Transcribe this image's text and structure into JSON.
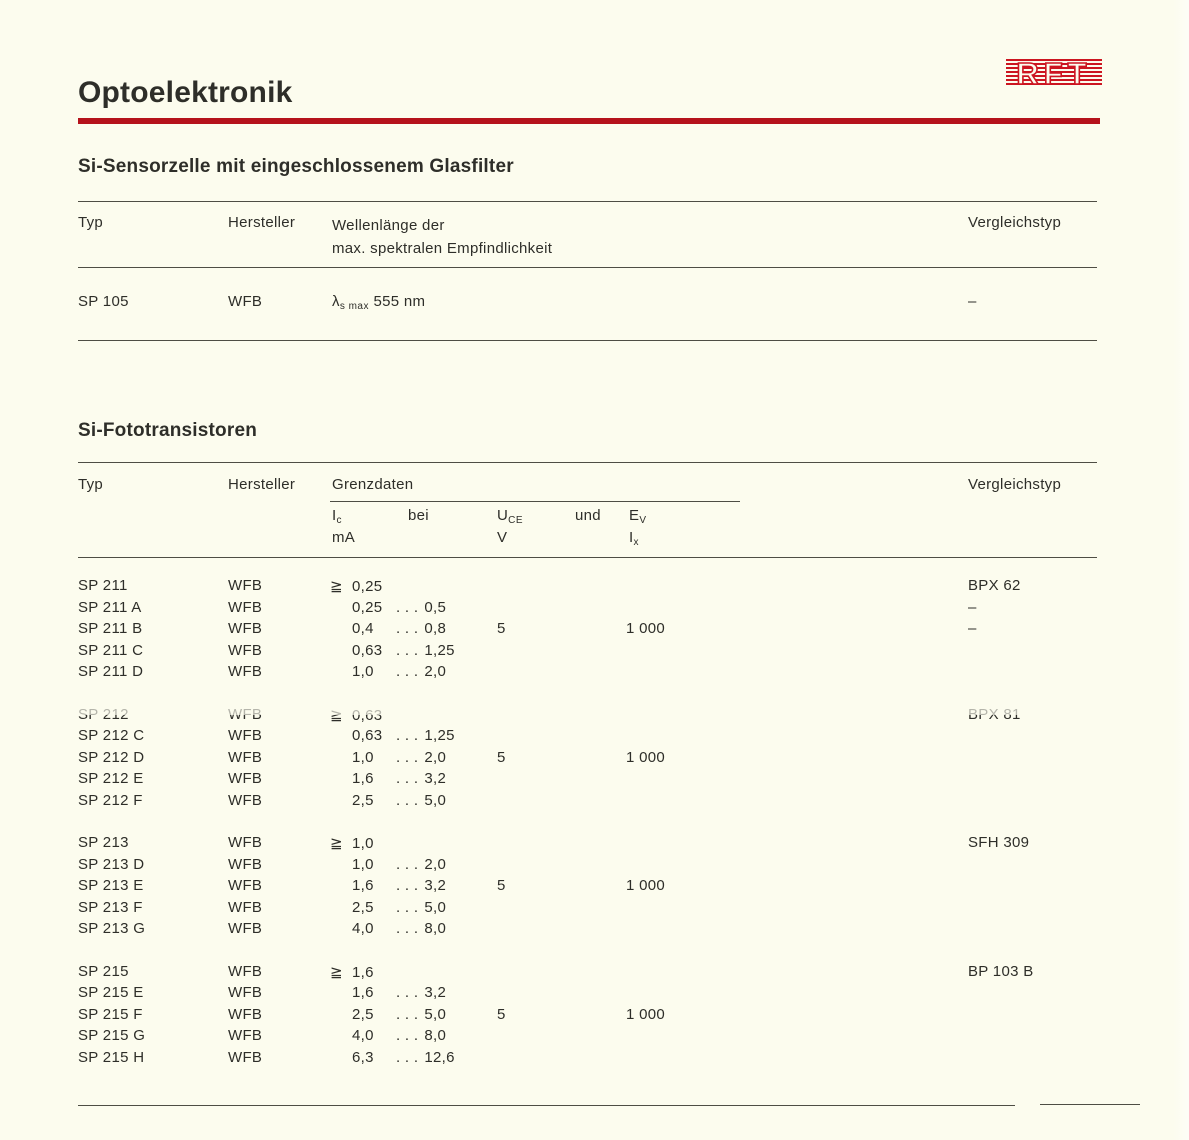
{
  "page": {
    "title": "Optoelektronik",
    "accent_color": "#b5121b",
    "background_color": "#fcfcee",
    "logo_text": "RFT",
    "logo_color": "#cc1520"
  },
  "section1": {
    "heading": "Si-Sensorzelle mit eingeschlossenem Glasfilter",
    "columns": {
      "typ": "Typ",
      "hersteller": "Hersteller",
      "wellenlaenge_line1": "Wellenlänge der",
      "wellenlaenge_line2": "max. spektralen Empfindlichkeit",
      "vergleichstyp": "Vergleichstyp"
    },
    "row": {
      "typ": "SP 105",
      "hersteller": "WFB",
      "lambda_base": "λ",
      "lambda_sub": "s max",
      "wert": "555 nm",
      "vergleichstyp": "–"
    }
  },
  "section2": {
    "heading": "Si-Fototransistoren",
    "columns": {
      "typ": "Typ",
      "hersteller": "Hersteller",
      "grenzdaten": "Grenzdaten",
      "vergleichstyp": "Vergleichstyp"
    },
    "sub": {
      "ic_base": "I",
      "ic_sub": "c",
      "ic_unit": "mA",
      "bei": "bei",
      "uce_base": "U",
      "uce_sub": "CE",
      "uce_unit": "V",
      "und": "und",
      "ev_base": "E",
      "ev_sub": "V",
      "ix_base": "I",
      "ix_sub": "x"
    },
    "ge_symbol": "≧",
    "range_separator": ". . .",
    "groups": [
      {
        "rows": [
          {
            "typ": "SP 211",
            "hersteller": "WFB",
            "ge": true,
            "ic_min": "0,25",
            "vergleichstyp": "BPX 62"
          },
          {
            "typ": "SP 211 A",
            "hersteller": "WFB",
            "ic_min": "0,25",
            "ic_max": "0,5",
            "vergleichstyp": "–"
          },
          {
            "typ": "SP 211 B",
            "hersteller": "WFB",
            "ic_min": "0,4",
            "ic_max": "0,8",
            "uce": "5",
            "ev": "1 000",
            "vergleichstyp": "–"
          },
          {
            "typ": "SP 211 C",
            "hersteller": "WFB",
            "ic_min": "0,63",
            "ic_max": "1,25"
          },
          {
            "typ": "SP 211 D",
            "hersteller": "WFB",
            "ic_min": "1,0",
            "ic_max": "2,0"
          }
        ]
      },
      {
        "rows": [
          {
            "typ": "SP 212",
            "hersteller": "WFB",
            "ge": true,
            "ic_min": "0,63",
            "vergleichstyp": "BPX 81",
            "faded": true
          },
          {
            "typ": "SP 212 C",
            "hersteller": "WFB",
            "ic_min": "0,63",
            "ic_max": "1,25"
          },
          {
            "typ": "SP 212 D",
            "hersteller": "WFB",
            "ic_min": "1,0",
            "ic_max": "2,0",
            "uce": "5",
            "ev": "1 000"
          },
          {
            "typ": "SP 212 E",
            "hersteller": "WFB",
            "ic_min": "1,6",
            "ic_max": "3,2"
          },
          {
            "typ": "SP 212 F",
            "hersteller": "WFB",
            "ic_min": "2,5",
            "ic_max": "5,0"
          }
        ]
      },
      {
        "rows": [
          {
            "typ": "SP 213",
            "hersteller": "WFB",
            "ge": true,
            "ic_min": "1,0",
            "vergleichstyp": "SFH 309"
          },
          {
            "typ": "SP 213 D",
            "hersteller": "WFB",
            "ic_min": "1,0",
            "ic_max": "2,0"
          },
          {
            "typ": "SP 213 E",
            "hersteller": "WFB",
            "ic_min": "1,6",
            "ic_max": "3,2",
            "uce": "5",
            "ev": "1 000"
          },
          {
            "typ": "SP 213 F",
            "hersteller": "WFB",
            "ic_min": "2,5",
            "ic_max": "5,0"
          },
          {
            "typ": "SP 213 G",
            "hersteller": "WFB",
            "ic_min": "4,0",
            "ic_max": "8,0"
          }
        ]
      },
      {
        "rows": [
          {
            "typ": "SP 215",
            "hersteller": "WFB",
            "ge": true,
            "ic_min": "1,6",
            "vergleichstyp": "BP 103 B"
          },
          {
            "typ": "SP 215 E",
            "hersteller": "WFB",
            "ic_min": "1,6",
            "ic_max": "3,2"
          },
          {
            "typ": "SP 215 F",
            "hersteller": "WFB",
            "ic_min": "2,5",
            "ic_max": "5,0",
            "uce": "5",
            "ev": "1 000"
          },
          {
            "typ": "SP 215 G",
            "hersteller": "WFB",
            "ic_min": "4,0",
            "ic_max": "8,0"
          },
          {
            "typ": "SP 215 H",
            "hersteller": "WFB",
            "ic_min": "6,3",
            "ic_max": "12,6"
          }
        ]
      }
    ]
  }
}
